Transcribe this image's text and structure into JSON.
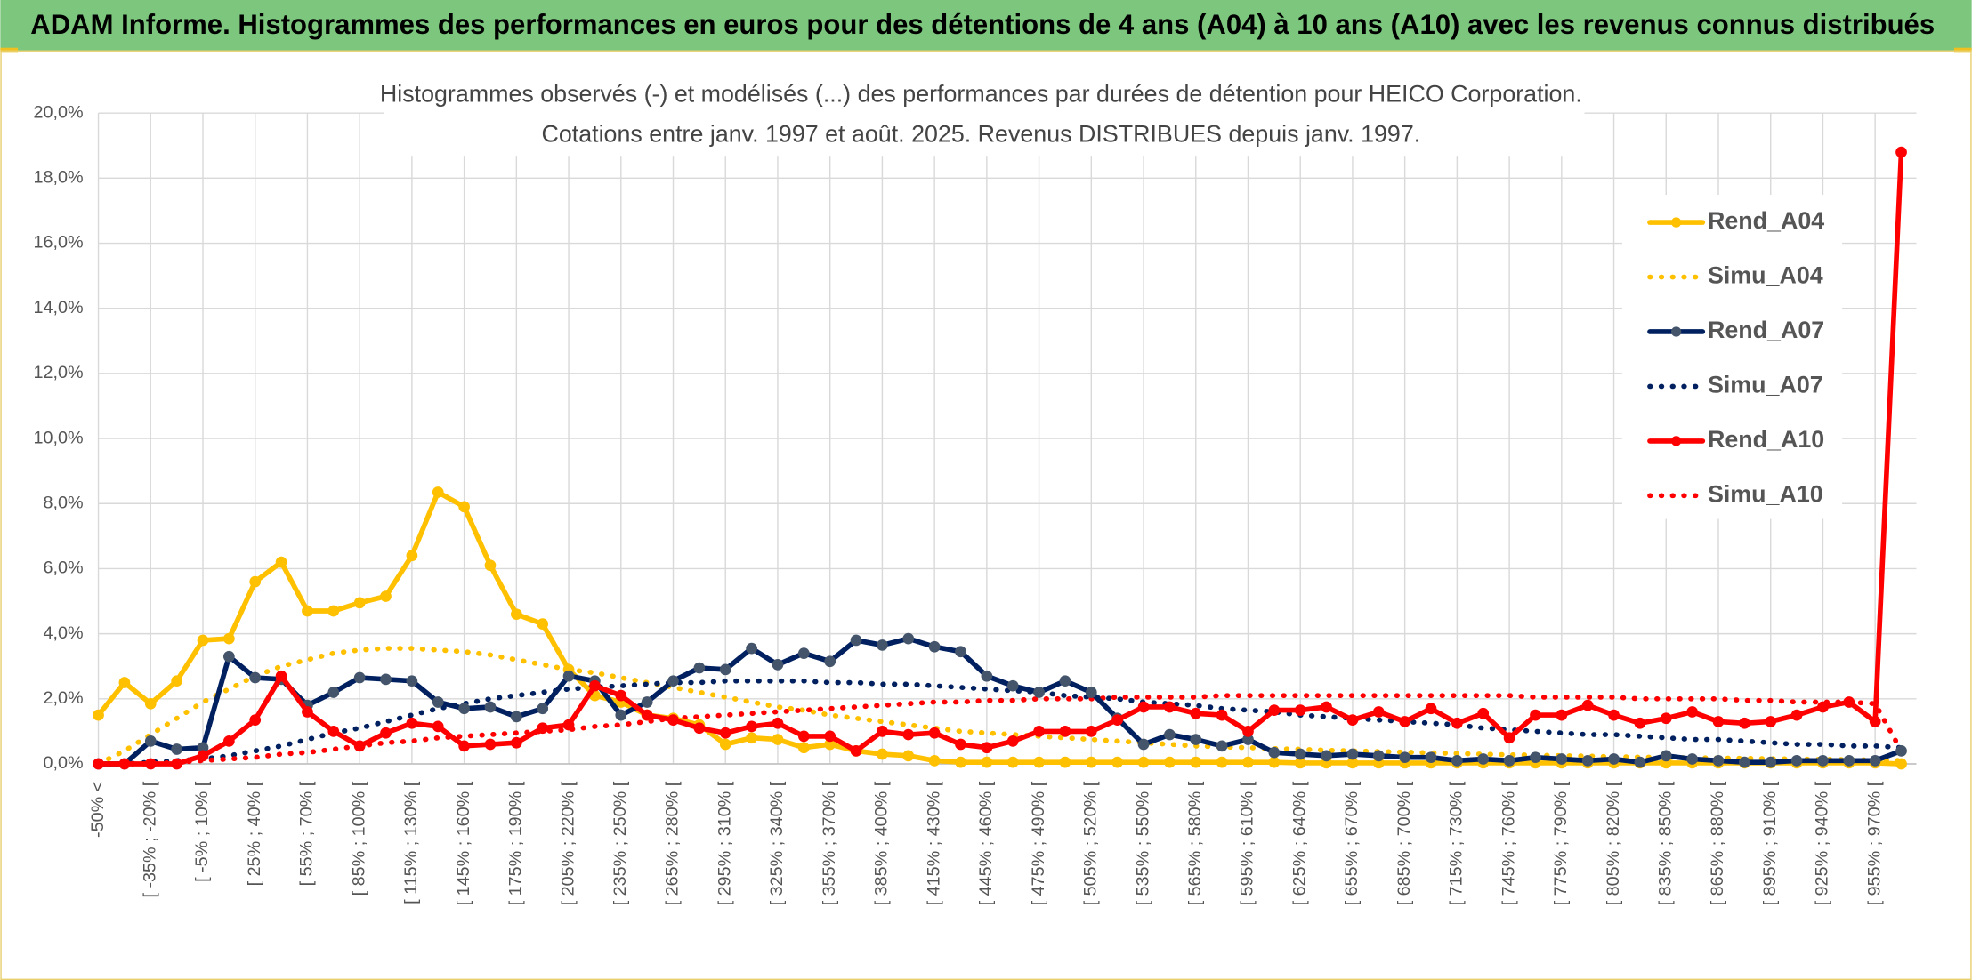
{
  "header": {
    "title": "ADAM Informe. Histogrammes des performances en euros pour des détentions de 4 ans (A04) à 10 ans (A10) avec les revenus connus distribués"
  },
  "chart_data": {
    "type": "line",
    "title": "Histogrammes observés (-) et modélisés (...) des performances par durées de détention pour HEICO Corporation.",
    "subtitle": "Cotations entre janv. 1997 et août. 2025. Revenus DISTRIBUES depuis janv. 1997.",
    "categories": [
      "-50% <",
      null,
      "[ -35% ; -20% [",
      null,
      "[ -5% ; 10% [",
      null,
      "[ 25% ; 40% [",
      null,
      "[ 55% ; 70% [",
      null,
      "[ 85% ; 100% [",
      null,
      "[ 115% ; 130% [",
      null,
      "[ 145% ; 160% [",
      null,
      "[ 175% ; 190% [",
      null,
      "[ 205% ; 220% [",
      null,
      "[ 235% ; 250% [",
      null,
      "[ 265% ; 280% [",
      null,
      "[ 295% ; 310% [",
      null,
      "[ 325% ; 340% [",
      null,
      "[ 355% ; 370% [",
      null,
      "[ 385% ; 400% [",
      null,
      "[ 415% ; 430% [",
      null,
      "[ 445% ; 460% [",
      null,
      "[ 475% ; 490% [",
      null,
      "[ 505% ; 520% [",
      null,
      "[ 535% ; 550% [",
      null,
      "[ 565% ; 580% [",
      null,
      "[ 595% ; 610% [",
      null,
      "[ 625% ; 640% [",
      null,
      "[ 655% ; 670% [",
      null,
      "[ 685% ; 700% [",
      null,
      "[ 715% ; 730% [",
      null,
      "[ 745% ; 760% [",
      null,
      "[ 775% ; 790% [",
      null,
      "[ 805% ; 820% [",
      null,
      "[ 835% ; 850% [",
      null,
      "[ 865% ; 880% [",
      null,
      "[ 895% ; 910% [",
      null,
      "[ 925% ; 940% [",
      null,
      "[ 955% ; 970% [",
      null
    ],
    "ylim": [
      0,
      20
    ],
    "yticks": [
      {
        "value": 0,
        "label": "0,0%"
      },
      {
        "value": 2,
        "label": "2,0%"
      },
      {
        "value": 4,
        "label": "4,0%"
      },
      {
        "value": 6,
        "label": "6,0%"
      },
      {
        "value": 8,
        "label": "8,0%"
      },
      {
        "value": 10,
        "label": "10,0%"
      },
      {
        "value": 12,
        "label": "12,0%"
      },
      {
        "value": 14,
        "label": "14,0%"
      },
      {
        "value": 16,
        "label": "16,0%"
      },
      {
        "value": 18,
        "label": "18,0%"
      },
      {
        "value": 20,
        "label": "20,0%"
      }
    ],
    "grid": true,
    "legend": "right",
    "series": [
      {
        "name": "Rend_A04",
        "color": "#ffc000",
        "marker_color": "#ffc000",
        "style": "solid",
        "markers": true,
        "values": [
          1.5,
          2.5,
          1.85,
          2.55,
          3.8,
          3.85,
          5.6,
          6.2,
          4.7,
          4.7,
          4.95,
          5.15,
          6.4,
          8.35,
          7.9,
          6.1,
          4.6,
          4.3,
          2.9,
          2.1,
          1.9,
          1.5,
          1.4,
          1.2,
          0.6,
          0.8,
          0.75,
          0.5,
          0.6,
          0.4,
          0.3,
          0.25,
          0.1,
          0.05,
          0.05,
          0.05,
          0.05,
          0.05,
          0.05,
          0.05,
          0.05,
          0.05,
          0.05,
          0.05,
          0.05,
          0.05,
          0.03,
          0.03,
          0.03,
          0.03,
          0.03,
          0.03,
          0.03,
          0.03,
          0.03,
          0.03,
          0.03,
          0.03,
          0.03,
          0.03,
          0.03,
          0.03,
          0.03,
          0.03,
          0.03,
          0.03,
          0.03,
          0.03,
          0.03,
          0
        ]
      },
      {
        "name": "Simu_A04",
        "color": "#ffc000",
        "style": "dotted",
        "markers": false,
        "values": [
          0,
          0.4,
          0.9,
          1.4,
          1.9,
          2.3,
          2.7,
          3.0,
          3.2,
          3.4,
          3.5,
          3.55,
          3.55,
          3.5,
          3.45,
          3.35,
          3.2,
          3.05,
          2.9,
          2.8,
          2.65,
          2.5,
          2.35,
          2.2,
          2.05,
          1.9,
          1.75,
          1.65,
          1.5,
          1.4,
          1.3,
          1.2,
          1.1,
          1.0,
          0.95,
          0.9,
          0.85,
          0.8,
          0.75,
          0.7,
          0.65,
          0.6,
          0.55,
          0.52,
          0.5,
          0.47,
          0.45,
          0.42,
          0.4,
          0.38,
          0.36,
          0.34,
          0.32,
          0.3,
          0.28,
          0.27,
          0.25,
          0.24,
          0.22,
          0.21,
          0.2,
          0.19,
          0.18,
          0.17,
          0.16,
          0.15,
          0.14,
          0.13,
          0.12,
          0.1
        ]
      },
      {
        "name": "Rend_A07",
        "color": "#002060",
        "marker_color": "#44546a",
        "style": "solid",
        "markers": true,
        "values": [
          0,
          0,
          0.7,
          0.45,
          0.5,
          3.3,
          2.65,
          2.6,
          1.8,
          2.2,
          2.65,
          2.6,
          2.55,
          1.9,
          1.7,
          1.75,
          1.45,
          1.7,
          2.7,
          2.55,
          1.5,
          1.9,
          2.55,
          2.95,
          2.9,
          3.55,
          3.05,
          3.4,
          3.15,
          3.8,
          3.65,
          3.85,
          3.6,
          3.45,
          2.7,
          2.4,
          2.2,
          2.55,
          2.2,
          1.4,
          0.6,
          0.9,
          0.75,
          0.55,
          0.75,
          0.35,
          0.3,
          0.25,
          0.3,
          0.25,
          0.2,
          0.2,
          0.1,
          0.15,
          0.1,
          0.2,
          0.15,
          0.1,
          0.15,
          0.05,
          0.25,
          0.15,
          0.1,
          0.05,
          0.05,
          0.1,
          0.1,
          0.1,
          0.1,
          0.4
        ]
      },
      {
        "name": "Simu_A07",
        "color": "#002060",
        "style": "dotted",
        "markers": false,
        "values": [
          0,
          0,
          0.05,
          0.1,
          0.15,
          0.25,
          0.4,
          0.55,
          0.75,
          0.95,
          1.1,
          1.3,
          1.5,
          1.7,
          1.85,
          2.0,
          2.1,
          2.2,
          2.3,
          2.35,
          2.4,
          2.45,
          2.5,
          2.5,
          2.55,
          2.55,
          2.55,
          2.55,
          2.5,
          2.5,
          2.45,
          2.45,
          2.4,
          2.35,
          2.3,
          2.25,
          2.2,
          2.1,
          2.05,
          2.0,
          1.9,
          1.85,
          1.8,
          1.7,
          1.65,
          1.6,
          1.5,
          1.45,
          1.4,
          1.35,
          1.3,
          1.25,
          1.2,
          1.1,
          1.05,
          1.0,
          0.95,
          0.9,
          0.9,
          0.85,
          0.8,
          0.75,
          0.75,
          0.7,
          0.65,
          0.6,
          0.6,
          0.55,
          0.55,
          0.5
        ]
      },
      {
        "name": "Rend_A10",
        "color": "#ff0000",
        "marker_color": "#ff0000",
        "style": "solid",
        "markers": true,
        "values": [
          0,
          0,
          0,
          0,
          0.25,
          0.7,
          1.35,
          2.7,
          1.6,
          1.0,
          0.55,
          0.95,
          1.25,
          1.15,
          0.55,
          0.6,
          0.65,
          1.1,
          1.2,
          2.4,
          2.1,
          1.5,
          1.35,
          1.1,
          0.95,
          1.15,
          1.25,
          0.85,
          0.85,
          0.4,
          1.0,
          0.9,
          0.95,
          0.6,
          0.5,
          0.7,
          1.0,
          1.0,
          1.0,
          1.35,
          1.75,
          1.75,
          1.55,
          1.5,
          1.0,
          1.65,
          1.65,
          1.75,
          1.35,
          1.6,
          1.3,
          1.7,
          1.25,
          1.55,
          0.8,
          1.5,
          1.5,
          1.8,
          1.5,
          1.25,
          1.4,
          1.6,
          1.3,
          1.25,
          1.3,
          1.5,
          1.75,
          1.9,
          1.3,
          18.8
        ]
      },
      {
        "name": "Simu_A10",
        "color": "#ff0000",
        "style": "dotted",
        "markers": false,
        "values": [
          0,
          0,
          0,
          0.05,
          0.1,
          0.15,
          0.2,
          0.3,
          0.35,
          0.45,
          0.55,
          0.65,
          0.7,
          0.8,
          0.85,
          0.9,
          0.95,
          1.0,
          1.05,
          1.15,
          1.2,
          1.3,
          1.4,
          1.45,
          1.5,
          1.55,
          1.6,
          1.65,
          1.7,
          1.75,
          1.8,
          1.85,
          1.9,
          1.9,
          1.95,
          1.95,
          2.0,
          2.0,
          2.0,
          2.05,
          2.05,
          2.05,
          2.05,
          2.1,
          2.1,
          2.1,
          2.1,
          2.1,
          2.1,
          2.1,
          2.1,
          2.1,
          2.1,
          2.1,
          2.1,
          2.05,
          2.05,
          2.05,
          2.05,
          2.0,
          2.0,
          2.0,
          2.0,
          1.95,
          1.95,
          1.9,
          1.9,
          1.9,
          1.85,
          0.4
        ]
      }
    ]
  }
}
